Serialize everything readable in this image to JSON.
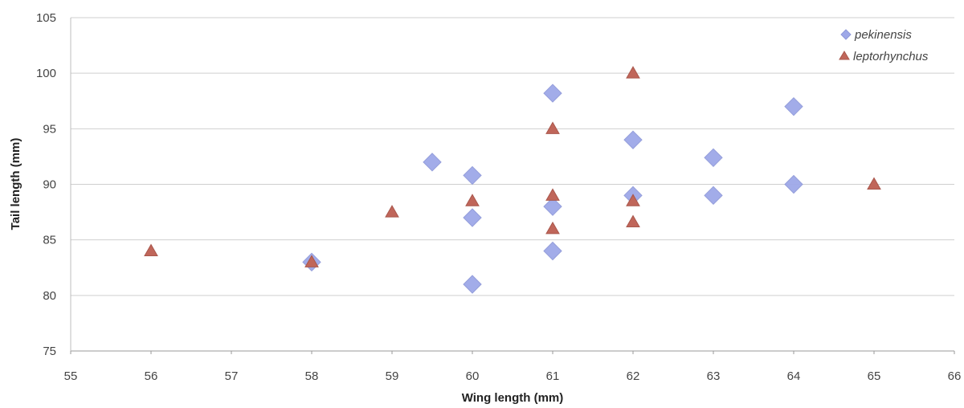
{
  "chart_data": {
    "type": "scatter",
    "xlabel": "Wing length (mm)",
    "ylabel": "Tail length (mm)",
    "xlim": [
      55,
      66
    ],
    "ylim": [
      75,
      105
    ],
    "x_ticks": [
      55,
      56,
      57,
      58,
      59,
      60,
      61,
      62,
      63,
      64,
      65,
      66
    ],
    "y_ticks": [
      75,
      80,
      85,
      90,
      95,
      100,
      105
    ],
    "grid": "horizontal",
    "legend_position": "top-right",
    "series": [
      {
        "name": "pekinensis",
        "marker": "diamond",
        "color": "#9ea8e8",
        "points": [
          [
            58,
            83
          ],
          [
            59.5,
            92
          ],
          [
            60,
            90.8
          ],
          [
            60,
            87
          ],
          [
            60,
            81
          ],
          [
            61,
            98.2
          ],
          [
            61,
            88
          ],
          [
            61,
            84
          ],
          [
            62,
            94
          ],
          [
            62,
            89
          ],
          [
            63,
            92.4
          ],
          [
            63,
            89
          ],
          [
            64,
            97
          ],
          [
            64,
            90
          ]
        ]
      },
      {
        "name": "leptorhynchus",
        "marker": "triangle",
        "color": "#c0665a",
        "points": [
          [
            56,
            84
          ],
          [
            58,
            83
          ],
          [
            59,
            87.5
          ],
          [
            60,
            88.5
          ],
          [
            61,
            95
          ],
          [
            61,
            89
          ],
          [
            61,
            86
          ],
          [
            62,
            100
          ],
          [
            62,
            88.5
          ],
          [
            62,
            86.6
          ],
          [
            65,
            90
          ]
        ]
      }
    ]
  }
}
